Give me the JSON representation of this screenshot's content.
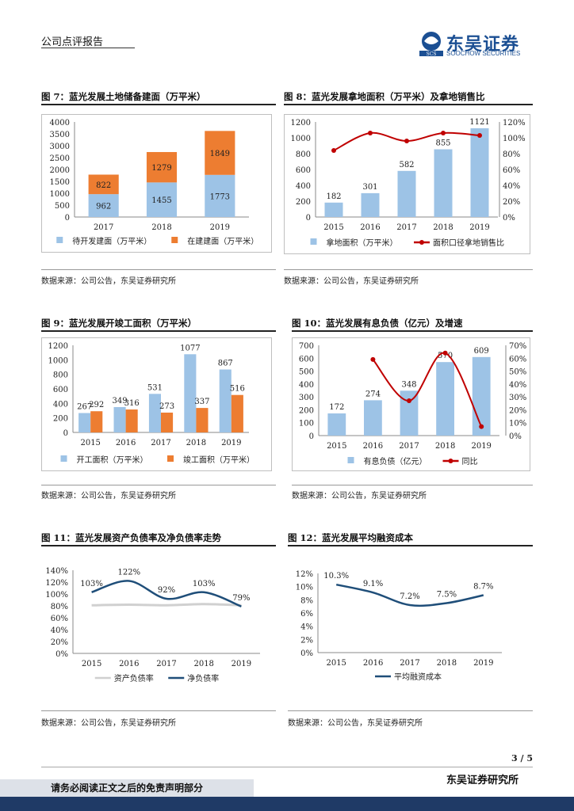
{
  "header": {
    "report_type": "公司点评报告",
    "logo_name": "东吴证券",
    "logo_en": "SOOCHOW SECURITIES",
    "logo_mark": "SCS"
  },
  "figures": [
    {
      "title": "图 7：蓝光发展土地储备建面（万平米）",
      "source": "数据来源：公司公告，东吴证券研究所"
    },
    {
      "title": "图 8：蓝光发展拿地面积（万平米）及拿地销售比",
      "source": "数据来源：公司公告，东吴证券研究所"
    },
    {
      "title": "图 9：蓝光发展开竣工面积（万平米）",
      "source": "数据来源：公司公告，东吴证券研究所"
    },
    {
      "title": "图 10：蓝光发展有息负债（亿元）及增速",
      "source": "数据来源：公司公告，东吴证券研究所"
    },
    {
      "title": "图 11：蓝光发展资产负债率及净负债率走势",
      "source": "数据来源：公司公告，东吴证券研究所"
    },
    {
      "title": "图 12：蓝光发展平均融资成本",
      "source": "数据来源：公司公告，东吴证券研究所"
    }
  ],
  "chart_data": [
    {
      "type": "bar",
      "stacked": true,
      "categories": [
        "2017",
        "2018",
        "2019"
      ],
      "series": [
        {
          "name": "待开发建面（万平米）",
          "values": [
            962,
            1455,
            1773
          ],
          "color": "#9dc3e6"
        },
        {
          "name": "在建建面（万平米）",
          "values": [
            822,
            1279,
            1849
          ],
          "color": "#ed7d31"
        }
      ],
      "ylim": [
        0,
        4000
      ],
      "yticks": [
        "0",
        "500",
        "1000",
        "1500",
        "2000",
        "2500",
        "3000",
        "3500",
        "4000"
      ],
      "legend": "bottom"
    },
    {
      "type": "bar",
      "categories": [
        "2015",
        "2016",
        "2017",
        "2018",
        "2019"
      ],
      "series": [
        {
          "name": "拿地面积（万平米）",
          "values": [
            182,
            301,
            582,
            855,
            1121
          ],
          "color": "#9dc3e6"
        },
        {
          "name": "面积口径拿地销售比",
          "type": "line",
          "axis": "right",
          "values": [
            84,
            106,
            96,
            106,
            103
          ],
          "color": "#c00000"
        }
      ],
      "ylim": [
        0,
        1200
      ],
      "yticks": [
        "0",
        "200",
        "400",
        "600",
        "800",
        "1000",
        "1200"
      ],
      "y2lim": [
        0,
        120
      ],
      "y2ticks": [
        "0%",
        "20%",
        "40%",
        "60%",
        "80%",
        "100%",
        "120%"
      ],
      "legend": "bottom"
    },
    {
      "type": "bar",
      "categories": [
        "2015",
        "2016",
        "2017",
        "2018",
        "2019"
      ],
      "series": [
        {
          "name": "开工面积（万平米）",
          "values": [
            267,
            349,
            531,
            1077,
            867
          ],
          "color": "#9dc3e6"
        },
        {
          "name": "竣工面积（万平米）",
          "values": [
            292,
            316,
            273,
            337,
            516
          ],
          "color": "#ed7d31"
        }
      ],
      "ylim": [
        0,
        1200
      ],
      "yticks": [
        "0",
        "200",
        "400",
        "600",
        "800",
        "1000",
        "1200"
      ],
      "legend": "bottom"
    },
    {
      "type": "bar",
      "categories": [
        "2015",
        "2016",
        "2017",
        "2018",
        "2019"
      ],
      "series": [
        {
          "name": "有息负债（亿元）",
          "values": [
            172,
            274,
            348,
            570,
            609
          ],
          "color": "#9dc3e6"
        },
        {
          "name": "同比",
          "type": "line",
          "axis": "right",
          "values": [
            null,
            59,
            27,
            64,
            7
          ],
          "color": "#c00000"
        }
      ],
      "ylim": [
        0,
        700
      ],
      "yticks": [
        "0",
        "100",
        "200",
        "300",
        "400",
        "500",
        "600",
        "700"
      ],
      "y2lim": [
        0,
        70
      ],
      "y2ticks": [
        "0%",
        "10%",
        "20%",
        "30%",
        "40%",
        "50%",
        "60%",
        "70%"
      ],
      "legend": "bottom"
    },
    {
      "type": "line",
      "categories": [
        "2015",
        "2016",
        "2017",
        "2018",
        "2019"
      ],
      "series": [
        {
          "name": "资产负债率",
          "values": [
            81,
            82,
            81,
            83,
            81
          ],
          "color": "#d0d0d0"
        },
        {
          "name": "净负债率",
          "values": [
            103,
            122,
            92,
            103,
            79
          ],
          "color": "#1f4e79",
          "labels": [
            "103%",
            "122%",
            "92%",
            "103%",
            "79%"
          ]
        }
      ],
      "ylim": [
        0,
        140
      ],
      "yticks": [
        "0%",
        "20%",
        "40%",
        "60%",
        "80%",
        "100%",
        "120%",
        "140%"
      ],
      "legend": "bottom"
    },
    {
      "type": "line",
      "categories": [
        "2015",
        "2016",
        "2017",
        "2018",
        "2019"
      ],
      "series": [
        {
          "name": "平均融资成本",
          "values": [
            10.3,
            9.1,
            7.2,
            7.5,
            8.7
          ],
          "color": "#1f4e79",
          "labels": [
            "10.3%",
            "9.1%",
            "7.2%",
            "7.5%",
            "8.7%"
          ]
        }
      ],
      "ylim": [
        0,
        12
      ],
      "yticks": [
        "0%",
        "2%",
        "4%",
        "6%",
        "8%",
        "10%",
        "12%"
      ],
      "legend": "bottom"
    }
  ],
  "footer": {
    "page": "3 / 5",
    "notice": "请务必阅读正文之后的免责声明部分",
    "org": "东吴证券研究所"
  }
}
